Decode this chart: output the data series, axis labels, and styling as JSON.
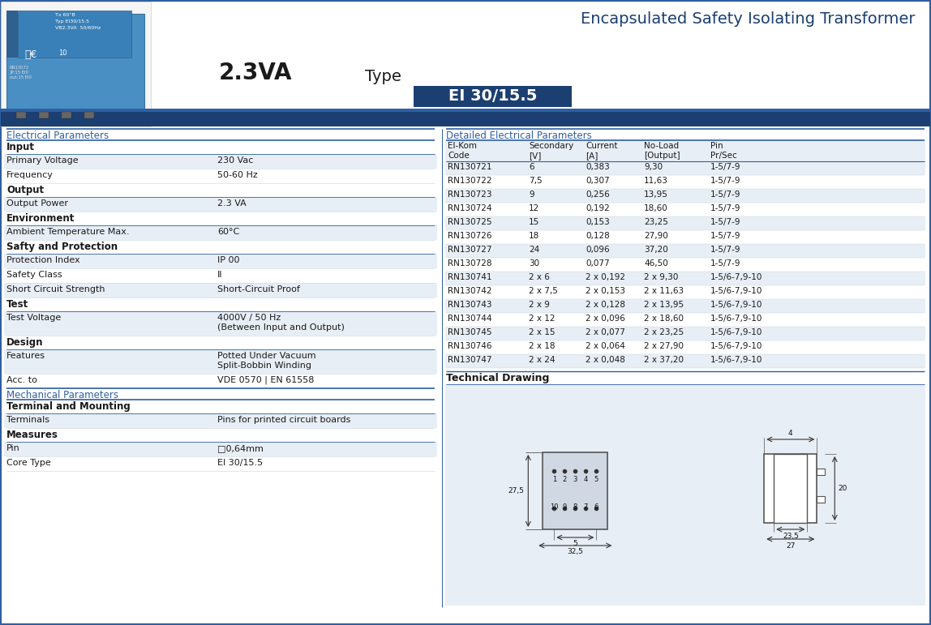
{
  "title": "Encapsulated Safety Isolating Transformer",
  "subtitle_va": "2.3VA",
  "subtitle_type": "Type",
  "subtitle_type_value": "EI 30/15.5",
  "header_bg_dark": "#1c3f72",
  "header_bg_medium": "#2e5fa3",
  "row_alt_color": "#e8eef5",
  "row_white": "#ffffff",
  "draw_bg": "#e8eef5",
  "text_color_dark": "#1a1a1a",
  "text_color_blue": "#2e5fa3",
  "electrical_params_title": "Electrical Parameters",
  "electrical_params": [
    {
      "section": "Input"
    },
    {
      "label": "Primary Voltage",
      "value": "230 Vac"
    },
    {
      "label": "Frequency",
      "value": "50-60 Hz"
    },
    {
      "section": "Output"
    },
    {
      "label": "Output Power",
      "value": "2.3 VA"
    },
    {
      "section": "Environment"
    },
    {
      "label": "Ambient Temperature Max.",
      "value": "60°C"
    },
    {
      "section": "Safty and Protection"
    },
    {
      "label": "Protection Index",
      "value": "IP 00"
    },
    {
      "label": "Safety Class",
      "value": "II"
    },
    {
      "label": "Short Circuit Strength",
      "value": "Short-Circuit Proof"
    },
    {
      "section": "Test"
    },
    {
      "label": "Test Voltage",
      "value": "4000V / 50 Hz\n(Between Input and Output)"
    },
    {
      "section": "Design"
    },
    {
      "label": "Features",
      "value": "Potted Under Vacuum\nSplit-Bobbin Winding"
    },
    {
      "label": "Acc. to",
      "value": "VDE 0570 | EN 61558"
    }
  ],
  "mechanical_params_title": "Mechanical Parameters",
  "mechanical_params": [
    {
      "section": "Terminal and Mounting"
    },
    {
      "label": "Terminals",
      "value": "Pins for printed circuit boards"
    },
    {
      "section": "Measures"
    },
    {
      "label": "Pin",
      "value": "□0,64mm"
    },
    {
      "label": "Core Type",
      "value": "EI 30/15.5"
    }
  ],
  "detailed_params_title": "Detailed Electrical Parameters",
  "table_headers": [
    "El-Kom\nCode",
    "Secondary\n[V]",
    "Current\n[A]",
    "No-Load\n[Output]",
    "Pin\nPr/Sec"
  ],
  "table_rows": [
    [
      "RN130721",
      "6",
      "0,383",
      "9,30",
      "1-5/7-9"
    ],
    [
      "RN130722",
      "7,5",
      "0,307",
      "11,63",
      "1-5/7-9"
    ],
    [
      "RN130723",
      "9",
      "0,256",
      "13,95",
      "1-5/7-9"
    ],
    [
      "RN130724",
      "12",
      "0,192",
      "18,60",
      "1-5/7-9"
    ],
    [
      "RN130725",
      "15",
      "0,153",
      "23,25",
      "1-5/7-9"
    ],
    [
      "RN130726",
      "18",
      "0,128",
      "27,90",
      "1-5/7-9"
    ],
    [
      "RN130727",
      "24",
      "0,096",
      "37,20",
      "1-5/7-9"
    ],
    [
      "RN130728",
      "30",
      "0,077",
      "46,50",
      "1-5/7-9"
    ],
    [
      "RN130741",
      "2 x 6",
      "2 x 0,192",
      "2 x 9,30",
      "1-5/6-7,9-10"
    ],
    [
      "RN130742",
      "2 x 7,5",
      "2 x 0,153",
      "2 x 11,63",
      "1-5/6-7,9-10"
    ],
    [
      "RN130743",
      "2 x 9",
      "2 x 0,128",
      "2 x 13,95",
      "1-5/6-7,9-10"
    ],
    [
      "RN130744",
      "2 x 12",
      "2 x 0,096",
      "2 x 18,60",
      "1-5/6-7,9-10"
    ],
    [
      "RN130745",
      "2 x 15",
      "2 x 0,077",
      "2 x 23,25",
      "1-5/6-7,9-10"
    ],
    [
      "RN130746",
      "2 x 18",
      "2 x 0,064",
      "2 x 27,90",
      "1-5/6-7,9-10"
    ],
    [
      "RN130747",
      "2 x 24",
      "2 x 0,048",
      "2 x 37,20",
      "1-5/6-7,9-10"
    ]
  ],
  "technical_drawing_title": "Technical Drawing"
}
